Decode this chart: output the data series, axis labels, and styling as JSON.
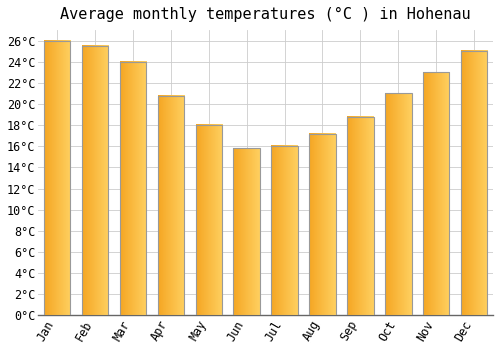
{
  "title": "Average monthly temperatures (°C ) in Hohenau",
  "months": [
    "Jan",
    "Feb",
    "Mar",
    "Apr",
    "May",
    "Jun",
    "Jul",
    "Aug",
    "Sep",
    "Oct",
    "Nov",
    "Dec"
  ],
  "values": [
    26.0,
    25.5,
    24.0,
    20.8,
    18.0,
    15.8,
    16.0,
    17.2,
    18.8,
    21.0,
    23.0,
    25.0
  ],
  "bar_color_left": "#F5A623",
  "bar_color_right": "#FFD060",
  "bar_edge_color": "#B8860B",
  "background_color": "#FFFFFF",
  "plot_bg_color": "#FFFFFF",
  "grid_color": "#CCCCCC",
  "ylim": [
    0,
    27
  ],
  "ytick_step": 2,
  "title_fontsize": 11,
  "tick_fontsize": 8.5,
  "font_family": "monospace"
}
